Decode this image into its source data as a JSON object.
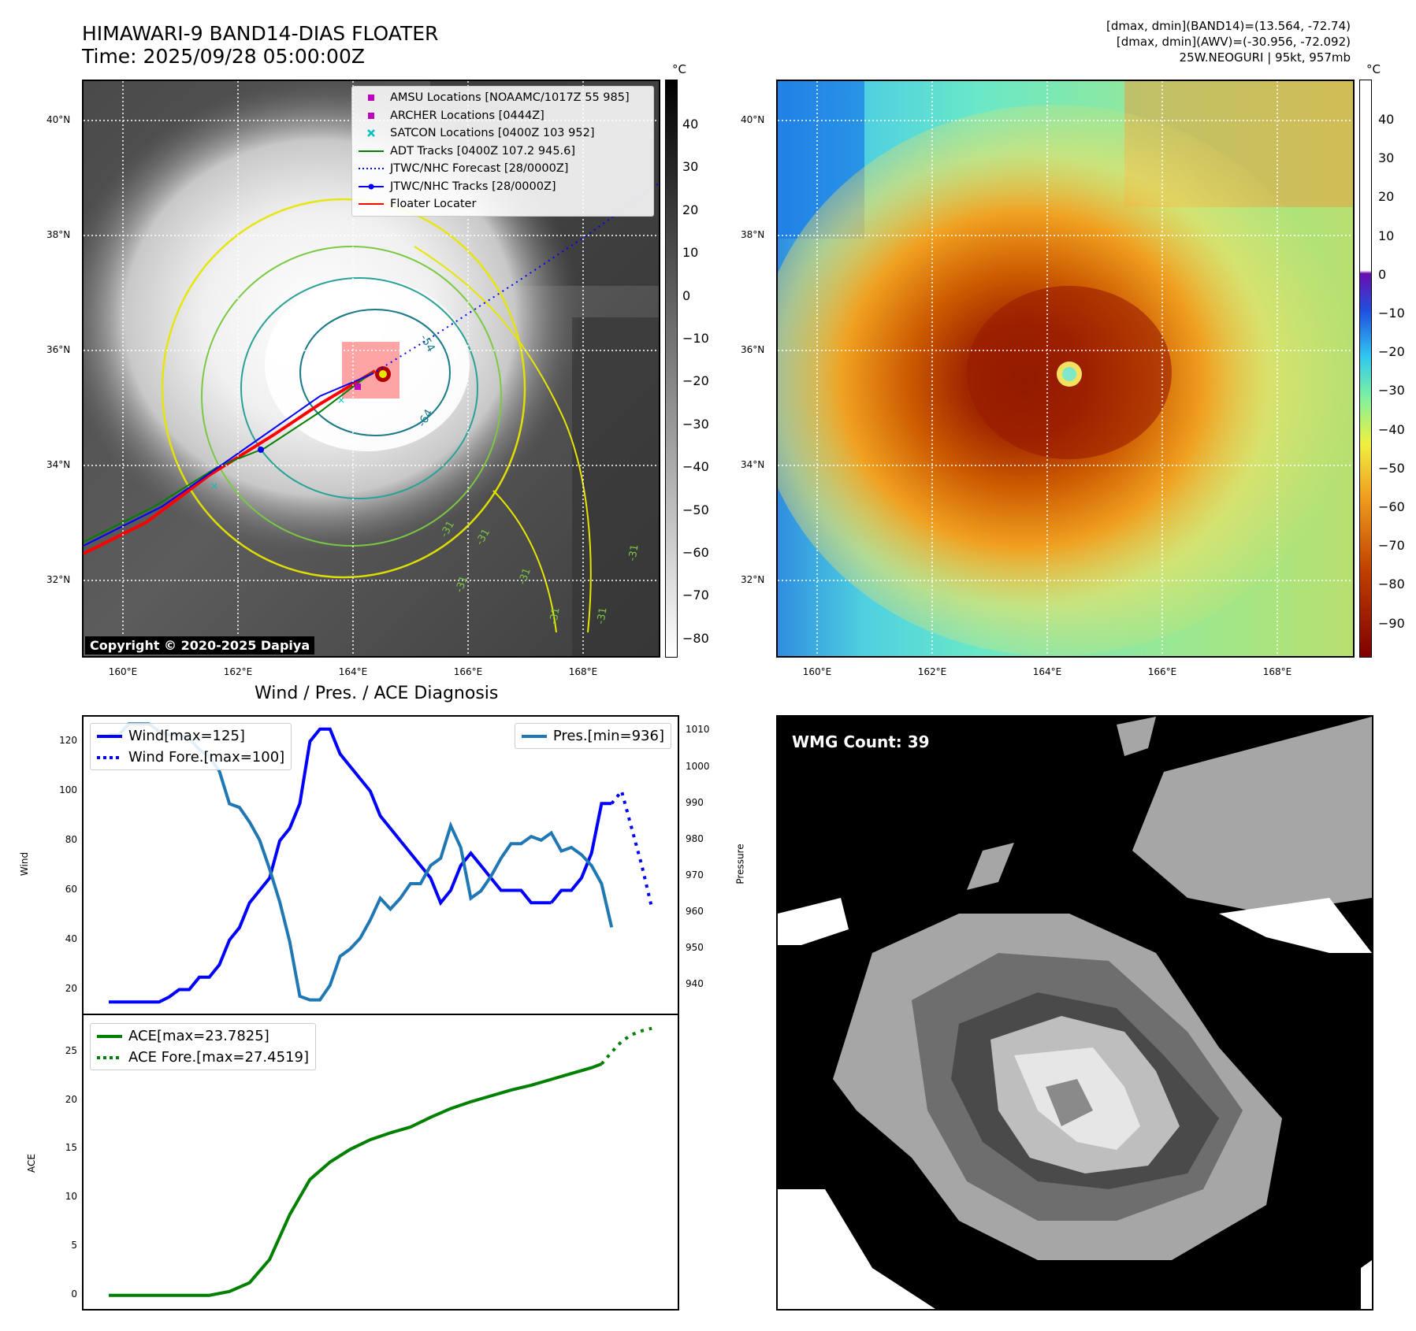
{
  "header": {
    "title_line1": "HIMAWARI-9 BAND14-DIAS FLOATER",
    "title_line2": "Time: 2025/09/28 05:00:00Z",
    "info_line1": "[dmax, dmin](BAND14)=(13.564, -72.74)",
    "info_line2": "[dmax, dmin](AWV)=(-30.956, -72.092)",
    "info_line3": "25W.NEOGURI | 95kt, 957mb"
  },
  "map_axes": {
    "lat_labels": [
      "40°N",
      "38°N",
      "36°N",
      "34°N",
      "32°N"
    ],
    "lon_labels": [
      "160°E",
      "162°E",
      "164°E",
      "166°E",
      "168°E"
    ]
  },
  "ir_panel": {
    "copyright": "Copyright © 2020-2025 Dapiya",
    "colorbar_unit": "°C",
    "colorbar_ticks": [
      "40",
      "30",
      "20",
      "10",
      "0",
      "−10",
      "−20",
      "−30",
      "−40",
      "−50",
      "−60",
      "−70",
      "−80"
    ],
    "contour_labels": [
      "-54",
      "-64",
      "-31",
      "-31",
      "-31",
      "-31",
      "-31",
      "-31",
      "-31"
    ],
    "legend": [
      {
        "label": "AMSU Locations [NOAAMC/1017Z 55 985]",
        "color": "#bf00bf",
        "marker": "square"
      },
      {
        "label": "ARCHER Locations [0444Z]",
        "color": "#bf00bf",
        "marker": "square"
      },
      {
        "label": "SATCON Locations [0400Z 103 952]",
        "color": "#00bfbf",
        "marker": "x"
      },
      {
        "label": "ADT Tracks [0400Z 107.2 945.6]",
        "color": "#008000",
        "marker": "line"
      },
      {
        "label": "JTWC/NHC Forecast [28/0000Z]",
        "color": "#0000ff",
        "marker": "dotted"
      },
      {
        "label": "JTWC/NHC Tracks [28/0000Z]",
        "color": "#0000ff",
        "marker": "line-dot"
      },
      {
        "label": "Floater Locater",
        "color": "#ff0000",
        "marker": "line"
      }
    ]
  },
  "awv_panel": {
    "colorbar_unit": "°C",
    "colorbar_ticks": [
      "40",
      "30",
      "20",
      "10",
      "0",
      "−10",
      "−20",
      "−30",
      "−40",
      "−50",
      "−60",
      "−70",
      "−80",
      "−90"
    ]
  },
  "wmg_panel": {
    "label": "WMG Count: 39"
  },
  "chart_data": [
    {
      "type": "line",
      "title": "Wind / Pres. / ACE Diagnosis",
      "ylabel": "Wind",
      "ylabel_right": "Pressure",
      "ylim": [
        10,
        130
      ],
      "ylim_right": [
        932,
        1014
      ],
      "yticks": [
        "20",
        "40",
        "60",
        "80",
        "100",
        "120"
      ],
      "yticks_right": [
        "940",
        "950",
        "960",
        "970",
        "980",
        "990",
        "1000",
        "1010"
      ],
      "legend_left": [
        "Wind[max=125]",
        "Wind Fore.[max=100]"
      ],
      "legend_right": [
        "Pres.[min=936]"
      ],
      "series": [
        {
          "name": "Wind[max=125]",
          "color": "#0000ff",
          "axis": "left",
          "style": "solid",
          "x": [
            0,
            2,
            4,
            5,
            6,
            7,
            8,
            9,
            10,
            11,
            12,
            13,
            14,
            15,
            16,
            17,
            18,
            19,
            20,
            21,
            22,
            23,
            24,
            25,
            26,
            27,
            28,
            29,
            30,
            31,
            32,
            33,
            34,
            35,
            36,
            37,
            38,
            39,
            40,
            41,
            42,
            43,
            44
          ],
          "values": [
            15,
            15,
            15,
            15,
            17,
            20,
            20,
            25,
            25,
            30,
            40,
            45,
            55,
            60,
            65,
            80,
            85,
            95,
            120,
            125,
            125,
            115,
            110,
            105,
            100,
            90,
            85,
            80,
            75,
            70,
            65,
            55,
            60,
            70,
            75,
            70,
            65,
            60,
            60,
            60,
            55,
            55,
            55
          ]
        },
        {
          "name": "Wind (cont.)",
          "color": "#0000ff",
          "axis": "left",
          "style": "solid",
          "x": [
            44,
            45,
            46,
            47,
            48,
            49,
            50
          ],
          "values": [
            55,
            60,
            60,
            65,
            75,
            95,
            95
          ]
        },
        {
          "name": "Wind Fore.[max=100]",
          "color": "#0000ff",
          "axis": "left",
          "style": "dotted",
          "x": [
            50,
            51,
            52,
            53,
            54
          ],
          "values": [
            95,
            100,
            85,
            70,
            53
          ]
        },
        {
          "name": "Pres.[min=936]",
          "color": "#1f77b4",
          "axis": "right",
          "style": "solid",
          "x": [
            0,
            1,
            2,
            3,
            4,
            5,
            6,
            7,
            8,
            9,
            10,
            11,
            12,
            13,
            14,
            15,
            16,
            17,
            18,
            19,
            20,
            21,
            22,
            23,
            24,
            25,
            26,
            27,
            28,
            29,
            30,
            31,
            32,
            33,
            34,
            35,
            36,
            37,
            38,
            39,
            40,
            41,
            42,
            43,
            44,
            45,
            46,
            47,
            48,
            49,
            50
          ],
          "values": [
            1009,
            1009,
            1012,
            1012,
            1012,
            1010,
            1009,
            1009,
            1008,
            1005,
            1003,
            999,
            990,
            989,
            985,
            980,
            972,
            963,
            952,
            937,
            936,
            936,
            940,
            948,
            950,
            953,
            958,
            964,
            961,
            964,
            968,
            968,
            973,
            975,
            984,
            978,
            964,
            966,
            970,
            975,
            979,
            979,
            981,
            980,
            982,
            977,
            978,
            976,
            973,
            968,
            956
          ]
        }
      ]
    },
    {
      "type": "line",
      "ylabel": "ACE",
      "ylim": [
        -1.4,
        28.8
      ],
      "yticks": [
        "0",
        "5",
        "10",
        "15",
        "20",
        "25"
      ],
      "legend": [
        "ACE[max=23.7825]",
        "ACE Fore.[max=27.4519]"
      ],
      "series": [
        {
          "name": "ACE[max=23.7825]",
          "color": "#008000",
          "style": "solid",
          "x": [
            0,
            2,
            4,
            6,
            8,
            10,
            12,
            14,
            16,
            18,
            20,
            22,
            24,
            26,
            28,
            30,
            32,
            34,
            36,
            38,
            40,
            42,
            44,
            46,
            48,
            49
          ],
          "values": [
            0,
            0,
            0,
            0,
            0,
            0,
            0.4,
            1.3,
            3.7,
            8.3,
            11.9,
            13.7,
            15.0,
            16.0,
            16.7,
            17.3,
            18.3,
            19.2,
            19.9,
            20.5,
            21.1,
            21.6,
            22.2,
            22.8,
            23.4,
            23.78
          ]
        },
        {
          "name": "ACE Fore.[max=27.4519]",
          "color": "#008000",
          "style": "dotted",
          "x": [
            49,
            50,
            51,
            52,
            53,
            54
          ],
          "values": [
            23.78,
            25.0,
            26.1,
            26.8,
            27.2,
            27.45
          ]
        }
      ]
    }
  ]
}
